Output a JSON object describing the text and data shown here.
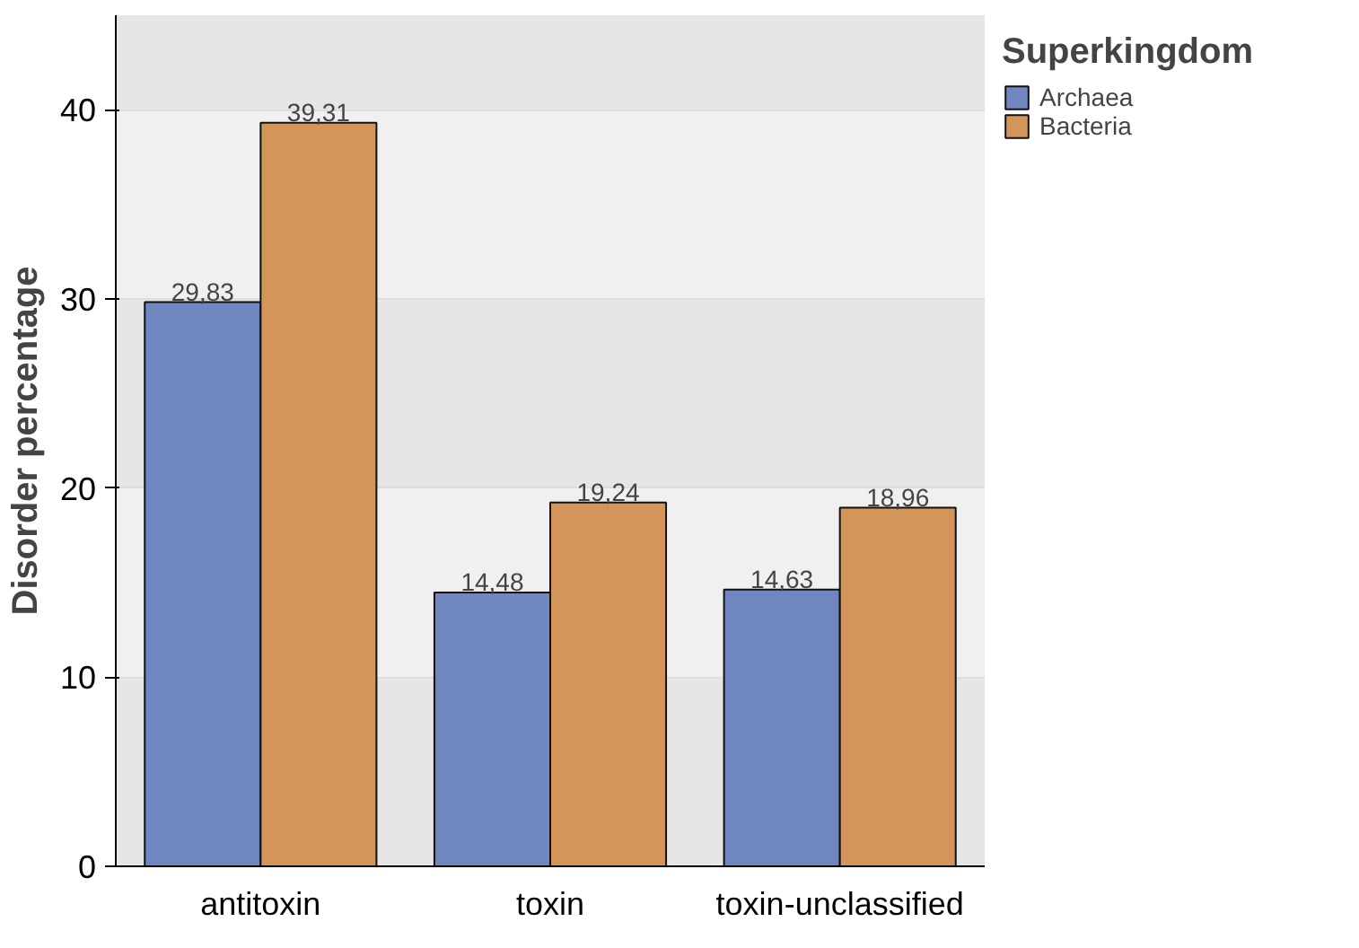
{
  "chart_data": {
    "type": "bar",
    "ylabel": "Disorder percentage",
    "legend_title": "Superkingdom",
    "categories": [
      "antitoxin",
      "toxin",
      "toxin-unclassified"
    ],
    "series": [
      {
        "name": "Archaea",
        "color": "#6f86c0",
        "values": [
          29.83,
          14.48,
          14.63
        ],
        "value_labels": [
          "29,83",
          "14,48",
          "14,63"
        ]
      },
      {
        "name": "Bacteria",
        "color": "#d4955a",
        "values": [
          39.31,
          19.24,
          18.96
        ],
        "value_labels": [
          "39,31",
          "19,24",
          "18,96"
        ]
      }
    ],
    "ylim": [
      0,
      45
    ],
    "yticks": [
      0,
      10,
      20,
      30,
      40
    ],
    "grid": "y",
    "legend": "top right"
  }
}
